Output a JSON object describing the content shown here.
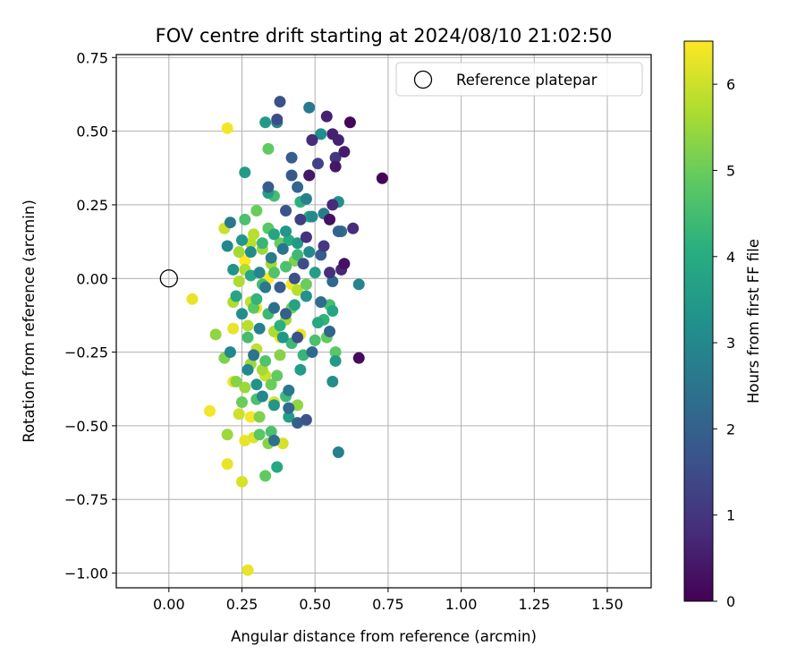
{
  "chart_data": {
    "type": "scatter",
    "title": "FOV centre drift starting at 2024/08/10 21:02:50",
    "xlabel": "Angular distance from reference (arcmin)",
    "ylabel": "Rotation from reference (arcmin)",
    "xlim": [
      -0.18,
      1.65
    ],
    "ylim": [
      -1.05,
      0.76
    ],
    "xticks": [
      0.0,
      0.25,
      0.5,
      0.75,
      1.0,
      1.25,
      1.5
    ],
    "xtick_labels": [
      "0.00",
      "0.25",
      "0.50",
      "0.75",
      "1.00",
      "1.25",
      "1.50"
    ],
    "yticks": [
      0.75,
      0.5,
      0.25,
      0.0,
      -0.25,
      -0.5,
      -0.75,
      -1.0
    ],
    "ytick_labels": [
      "0.75",
      "0.50",
      "0.25",
      "0.00",
      "−0.25",
      "−0.50",
      "−0.75",
      "−1.00"
    ],
    "grid": true,
    "legend": {
      "position": "upper-right",
      "entries": [
        "Reference platepar"
      ]
    },
    "reference_point": {
      "x": 0.0,
      "y": 0.0,
      "name": "Reference platepar",
      "marker": "hollow-circle"
    },
    "colorbar": {
      "label": "Hours from first FF file",
      "range": [
        0,
        6.5
      ],
      "ticks": [
        0,
        1,
        2,
        3,
        4,
        5,
        6
      ],
      "tick_labels": [
        "0",
        "1",
        "2",
        "3",
        "4",
        "5",
        "6"
      ],
      "colormap": "viridis"
    },
    "points": [
      [
        0.62,
        0.53,
        0.1
      ],
      [
        0.73,
        0.34,
        0.1
      ],
      [
        0.65,
        -0.27,
        0.2
      ],
      [
        0.6,
        0.05,
        0.3
      ],
      [
        0.55,
        0.2,
        0.3
      ],
      [
        0.48,
        0.35,
        0.4
      ],
      [
        0.57,
        0.38,
        0.4
      ],
      [
        0.6,
        0.43,
        0.5
      ],
      [
        0.54,
        0.55,
        0.6
      ],
      [
        0.56,
        0.49,
        0.6
      ],
      [
        0.58,
        0.47,
        0.6
      ],
      [
        0.59,
        0.03,
        0.7
      ],
      [
        0.56,
        0.25,
        0.8
      ],
      [
        0.63,
        0.17,
        0.8
      ],
      [
        0.49,
        0.47,
        0.8
      ],
      [
        0.55,
        0.02,
        0.9
      ],
      [
        0.47,
        0.14,
        0.9
      ],
      [
        0.57,
        0.41,
        1.0
      ],
      [
        0.53,
        0.11,
        1.1
      ],
      [
        0.51,
        0.39,
        1.3
      ],
      [
        0.38,
        0.6,
        1.6
      ],
      [
        0.37,
        0.54,
        1.5
      ],
      [
        0.49,
        0.47,
        1.8
      ],
      [
        0.42,
        0.35,
        1.8
      ],
      [
        0.42,
        0.41,
        1.9
      ],
      [
        0.44,
        0.31,
        2.1
      ],
      [
        0.4,
        0.23,
        1.7
      ],
      [
        0.45,
        0.2,
        1.2
      ],
      [
        0.34,
        0.31,
        1.9
      ],
      [
        0.58,
        0.16,
        2.1
      ],
      [
        0.56,
        -0.01,
        2.2
      ],
      [
        0.52,
        0.08,
        1.9
      ],
      [
        0.46,
        0.05,
        1.5
      ],
      [
        0.43,
        0.0,
        1.6
      ],
      [
        0.38,
        -0.03,
        1.9
      ],
      [
        0.4,
        -0.12,
        2.0
      ],
      [
        0.44,
        -0.2,
        1.6
      ],
      [
        0.49,
        -0.25,
        2.2
      ],
      [
        0.52,
        -0.08,
        2.3
      ],
      [
        0.55,
        -0.18,
        2.1
      ],
      [
        0.47,
        -0.48,
        1.7
      ],
      [
        0.44,
        -0.49,
        2.0
      ],
      [
        0.41,
        -0.44,
        2.2
      ],
      [
        0.36,
        -0.55,
        2.4
      ],
      [
        0.41,
        -0.38,
        2.6
      ],
      [
        0.58,
        -0.59,
        2.8
      ],
      [
        0.65,
        -0.02,
        2.9
      ],
      [
        0.56,
        -0.35,
        3.2
      ],
      [
        0.58,
        0.26,
        3.2
      ],
      [
        0.59,
        0.16,
        2.4
      ],
      [
        0.53,
        0.22,
        2.7
      ],
      [
        0.49,
        0.21,
        3.1
      ],
      [
        0.47,
        0.27,
        2.8
      ],
      [
        0.48,
        0.58,
        2.6
      ],
      [
        0.52,
        0.49,
        3.2
      ],
      [
        0.37,
        0.53,
        2.9
      ],
      [
        0.33,
        0.53,
        3.5
      ],
      [
        0.26,
        0.36,
        3.5
      ],
      [
        0.34,
        0.29,
        3.6
      ],
      [
        0.21,
        0.19,
        2.6
      ],
      [
        0.2,
        0.11,
        3.0
      ],
      [
        0.25,
        0.13,
        3.4
      ],
      [
        0.28,
        0.09,
        3.1
      ],
      [
        0.31,
        0.02,
        3.0
      ],
      [
        0.35,
        0.07,
        2.7
      ],
      [
        0.39,
        0.1,
        2.5
      ],
      [
        0.33,
        -0.03,
        2.6
      ],
      [
        0.36,
        -0.1,
        2.3
      ],
      [
        0.31,
        -0.17,
        2.8
      ],
      [
        0.29,
        -0.26,
        2.5
      ],
      [
        0.27,
        -0.31,
        3.0
      ],
      [
        0.3,
        -0.36,
        3.3
      ],
      [
        0.32,
        -0.4,
        3.0
      ],
      [
        0.36,
        -0.43,
        3.4
      ],
      [
        0.41,
        -0.47,
        3.6
      ],
      [
        0.37,
        -0.64,
        3.9
      ],
      [
        0.21,
        -0.25,
        3.0
      ],
      [
        0.25,
        -0.12,
        3.2
      ],
      [
        0.23,
        -0.06,
        3.8
      ],
      [
        0.22,
        0.03,
        3.3
      ],
      [
        0.4,
        0.16,
        3.4
      ],
      [
        0.44,
        0.12,
        3.5
      ],
      [
        0.48,
        0.09,
        3.1
      ],
      [
        0.5,
        0.02,
        3.6
      ],
      [
        0.47,
        -0.06,
        3.3
      ],
      [
        0.43,
        -0.09,
        3.7
      ],
      [
        0.39,
        -0.2,
        3.4
      ],
      [
        0.45,
        -0.31,
        3.6
      ],
      [
        0.51,
        -0.15,
        3.9
      ],
      [
        0.56,
        -0.11,
        3.8
      ],
      [
        0.57,
        -0.28,
        3.5
      ],
      [
        0.45,
        0.26,
        4.1
      ],
      [
        0.48,
        0.21,
        3.9
      ],
      [
        0.41,
        0.13,
        4.0
      ],
      [
        0.36,
        0.15,
        3.8
      ],
      [
        0.32,
        0.12,
        4.3
      ],
      [
        0.28,
        0.01,
        3.9
      ],
      [
        0.3,
        -0.07,
        4.2
      ],
      [
        0.34,
        -0.12,
        4.4
      ],
      [
        0.38,
        -0.16,
        4.1
      ],
      [
        0.42,
        -0.22,
        4.4
      ],
      [
        0.46,
        -0.26,
        4.3
      ],
      [
        0.5,
        -0.21,
        4.6
      ],
      [
        0.53,
        -0.14,
        4.2
      ],
      [
        0.55,
        -0.09,
        4.5
      ],
      [
        0.57,
        -0.25,
        4.8
      ],
      [
        0.54,
        -0.2,
        4.9
      ],
      [
        0.44,
        0.08,
        4.4
      ],
      [
        0.4,
        0.04,
        4.6
      ],
      [
        0.36,
        0.02,
        4.7
      ],
      [
        0.32,
        -0.02,
        4.5
      ],
      [
        0.29,
        -0.1,
        4.8
      ],
      [
        0.27,
        -0.2,
        4.5
      ],
      [
        0.33,
        -0.28,
        4.7
      ],
      [
        0.37,
        -0.33,
        4.9
      ],
      [
        0.4,
        -0.4,
        4.4
      ],
      [
        0.3,
        -0.41,
        4.6
      ],
      [
        0.35,
        -0.52,
        4.6
      ],
      [
        0.33,
        -0.67,
        4.9
      ],
      [
        0.31,
        -0.53,
        4.8
      ],
      [
        0.25,
        -0.42,
        5.0
      ],
      [
        0.26,
        0.2,
        4.6
      ],
      [
        0.36,
        0.28,
        4.5
      ],
      [
        0.34,
        0.44,
        4.9
      ],
      [
        0.3,
        0.23,
        5.0
      ],
      [
        0.34,
        0.17,
        4.8
      ],
      [
        0.38,
        0.12,
        5.0
      ],
      [
        0.43,
        0.06,
        5.2
      ],
      [
        0.47,
        -0.02,
        5.0
      ],
      [
        0.42,
        -0.1,
        5.1
      ],
      [
        0.38,
        -0.26,
        5.3
      ],
      [
        0.35,
        -0.36,
        5.0
      ],
      [
        0.31,
        -0.47,
        5.2
      ],
      [
        0.34,
        -0.56,
        5.3
      ],
      [
        0.44,
        -0.43,
        5.4
      ],
      [
        0.23,
        -0.35,
        5.3
      ],
      [
        0.19,
        -0.27,
        5.2
      ],
      [
        0.16,
        -0.19,
        5.4
      ],
      [
        0.2,
        -0.53,
        5.5
      ],
      [
        0.28,
        -0.29,
        5.5
      ],
      [
        0.26,
        -0.37,
        5.5
      ],
      [
        0.32,
        -0.31,
        5.6
      ],
      [
        0.36,
        -0.18,
        5.7
      ],
      [
        0.4,
        -0.14,
        5.6
      ],
      [
        0.44,
        -0.04,
        5.8
      ],
      [
        0.28,
        -0.08,
        5.9
      ],
      [
        0.26,
        0.03,
        5.7
      ],
      [
        0.24,
        0.09,
        5.6
      ],
      [
        0.28,
        0.12,
        5.8
      ],
      [
        0.32,
        0.1,
        5.5
      ],
      [
        0.35,
        0.05,
        5.6
      ],
      [
        0.29,
        0.15,
        5.8
      ],
      [
        0.34,
        0.17,
        5.9
      ],
      [
        0.24,
        -0.01,
        5.7
      ],
      [
        0.22,
        -0.08,
        5.7
      ],
      [
        0.27,
        -0.16,
        5.8
      ],
      [
        0.3,
        -0.24,
        5.9
      ],
      [
        0.33,
        -0.33,
        6.0
      ],
      [
        0.36,
        -0.42,
        6.1
      ],
      [
        0.39,
        -0.56,
        6.1
      ],
      [
        0.24,
        -0.46,
        6.0
      ],
      [
        0.29,
        -0.54,
        6.2
      ],
      [
        0.26,
        -0.55,
        6.3
      ],
      [
        0.25,
        -0.69,
        6.1
      ],
      [
        0.2,
        -0.63,
        6.3
      ],
      [
        0.14,
        -0.45,
        6.4
      ],
      [
        0.22,
        -0.35,
        6.4
      ],
      [
        0.19,
        0.17,
        6.0
      ],
      [
        0.2,
        0.51,
        6.4
      ],
      [
        0.08,
        -0.07,
        6.3
      ],
      [
        0.27,
        -0.99,
        6.3
      ],
      [
        0.26,
        0.06,
        6.5
      ],
      [
        0.34,
        0.0,
        6.5
      ],
      [
        0.42,
        -0.02,
        6.4
      ],
      [
        0.38,
        -0.2,
        6.4
      ],
      [
        0.45,
        -0.19,
        6.3
      ],
      [
        0.28,
        -0.47,
        6.4
      ],
      [
        0.3,
        -0.1,
        6.4
      ],
      [
        0.22,
        -0.17,
        6.3
      ]
    ]
  }
}
